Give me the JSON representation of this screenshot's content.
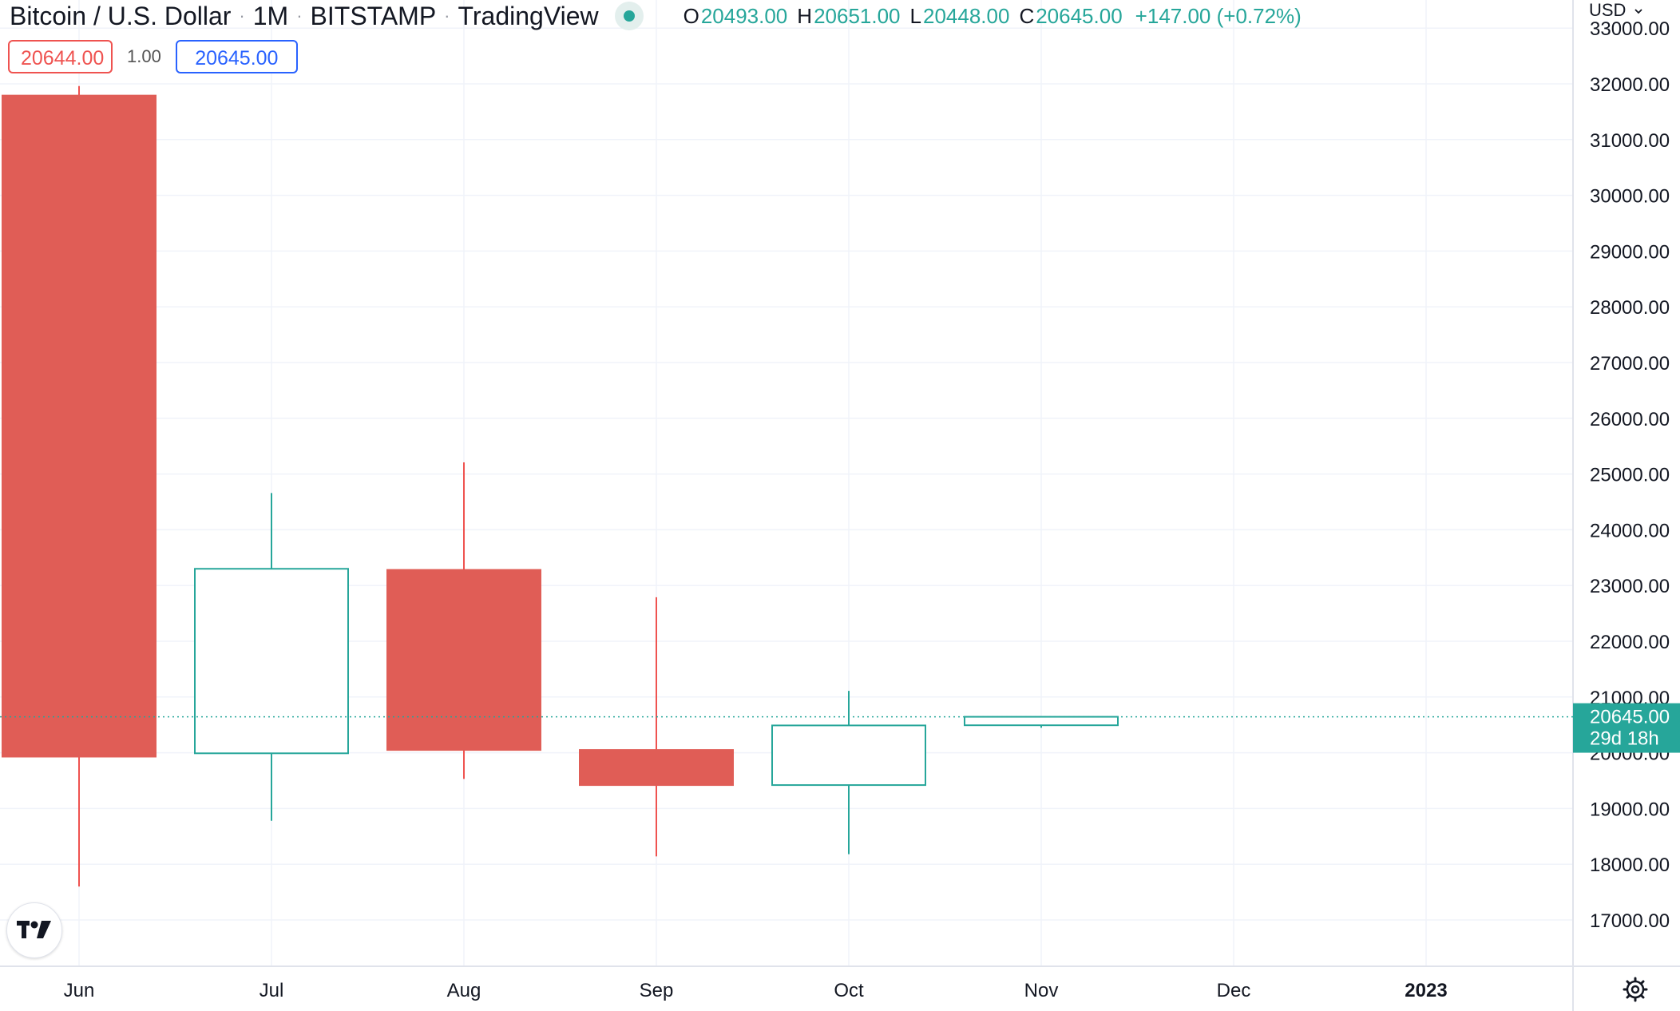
{
  "header": {
    "symbol": "Bitcoin / U.S. Dollar",
    "interval": "1M",
    "exchange": "BITSTAMP",
    "provider": "TradingView",
    "ohlc": {
      "o_label": "O",
      "o": "20493.00",
      "h_label": "H",
      "h": "20651.00",
      "l_label": "L",
      "l": "20448.00",
      "c_label": "C",
      "c": "20645.00",
      "change": "+147.00 (+0.72%)"
    }
  },
  "trade_panel": {
    "sell_price": "20644.00",
    "quantity": "1.00",
    "buy_price": "20645.00"
  },
  "currency_label": "USD",
  "price_tag": {
    "price": "20645.00",
    "countdown": "29d 18h"
  },
  "colors": {
    "up": "#26a69a",
    "down": "#ef5350",
    "down_fill": "#e05d56",
    "buy_border": "#2962ff",
    "grid": "#f0f3fa"
  },
  "icons": [
    "tradingview-logo-icon",
    "chevron-down-icon",
    "settings-gear-icon"
  ],
  "chart_data": {
    "type": "candlestick",
    "x_tick_labels": [
      "Jun",
      "Jul",
      "Aug",
      "Sep",
      "Oct",
      "Nov",
      "Dec",
      "2023"
    ],
    "y_tick_labels": [
      "33000.00",
      "32000.00",
      "31000.00",
      "30000.00",
      "29000.00",
      "28000.00",
      "27000.00",
      "26000.00",
      "25000.00",
      "24000.00",
      "23000.00",
      "22000.00",
      "21000.00",
      "20000.00",
      "19000.00",
      "18000.00",
      "17000.00"
    ],
    "ylim": [
      16200,
      33200
    ],
    "grid": true,
    "last_price_line": 20645,
    "candles": [
      {
        "month": "Jun 2022",
        "open": 31790,
        "high": 31960,
        "low": 17600,
        "close": 19930
      },
      {
        "month": "Jul 2022",
        "open": 19990,
        "high": 24660,
        "low": 18780,
        "close": 23300
      },
      {
        "month": "Aug 2022",
        "open": 23280,
        "high": 25210,
        "low": 19530,
        "close": 20050
      },
      {
        "month": "Sep 2022",
        "open": 20050,
        "high": 22790,
        "low": 18140,
        "close": 19420
      },
      {
        "month": "Oct 2022",
        "open": 19420,
        "high": 21110,
        "low": 18180,
        "close": 20490
      },
      {
        "month": "Nov 2022",
        "open": 20493,
        "high": 20651,
        "low": 20448,
        "close": 20645
      }
    ]
  }
}
